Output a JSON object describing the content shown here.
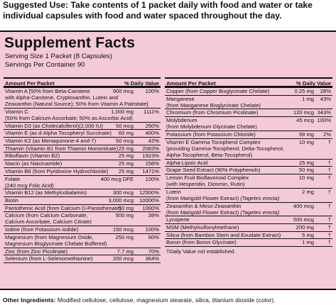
{
  "suggested_use": {
    "lead": "Suggested Use:",
    "text": " Take contents of 1 packet daily with food and water or take individual capsules with food and water spaced throughout the day."
  },
  "panel": {
    "title": "Supplement Facts",
    "serving_size": "Serving Size 1 Packet (8 Capsules)",
    "servings_per_container": "Servings Per Container 90",
    "header_amount": "Amount Per Packet",
    "header_dv": "% Daily Value"
  },
  "left_rows": [
    {
      "l1": "Vitamin A [50% from Beta-Carotene",
      "a": "900 mcg",
      "d": "100%",
      "l2": "with Alpha-Carotene, Cryptoxanthin, Lutein and",
      "l3": "Zeaxanthin (Natural Source); 50% from Vitamin A Palmitate]"
    },
    {
      "l1": "Vitamin C",
      "a": "1,000 mg",
      "d": "1111%",
      "l2": "(50% from Calcium Ascorbate; 50% as Ascorbic Acid)"
    },
    {
      "l1": "Vitamin D3 (as Cholecalciferol)(2,000 IU)",
      "a": "50 mcg",
      "d": "250%"
    },
    {
      "l1": "Vitamin E (as d-Alpha Tocopheryl Succinate)",
      "a": "60 mg",
      "d": "400%"
    },
    {
      "l1": "Vitamin K2 (as Menaquinone-4 and-7)",
      "a": "50 mcg",
      "d": "42%"
    },
    {
      "l1": "Thiamin (Vitamin B1 from Thiamin Mononitrate)",
      "a": "25 mg",
      "d": "2083%"
    },
    {
      "l1": "Riboflavin (Vitamin B2)",
      "a": "25 mg",
      "d": "1923%"
    },
    {
      "l1": "Niacin (as Niacinamide)",
      "a": "25 mg",
      "d": "156%"
    },
    {
      "l1": "Vitamin B6 (from Pyridoxine Hydrochloride)",
      "a": "25 mg",
      "d": "1471%"
    },
    {
      "l1": "Folate",
      "a": "400 mcg DFE",
      "d": "100%",
      "l2": "(240 mcg Folic Acid)"
    },
    {
      "l1": "Vitamin B12 (as Methylcobalamin)",
      "a": "300 mcg",
      "d": "12500%"
    },
    {
      "l1": "Biotin",
      "a": "3,000 mcg",
      "d": "10000%"
    },
    {
      "l1": "Pantothenic Acid (from Calcium D-Pantothenate)",
      "a": "50 mg",
      "d": "1000%"
    },
    {
      "l1": "Calcium (from Calcium Carbonate,",
      "a": "500 mg",
      "d": "38%",
      "l2": "Calcium Ascorbate, Calcium Citrate)"
    },
    {
      "l1": "Iodine (from Potassium Iodide)",
      "a": "150 mcg",
      "d": "100%"
    },
    {
      "l1": "Magnesium (from Magnesium Oxide,",
      "a": "250 mg",
      "d": "60%",
      "l2": "Magnesium Bisglycinate Chelate Buffered)"
    },
    {
      "l1": "Zinc (from Zinc Picolinate)",
      "a": "7.7 mg",
      "d": "70%"
    },
    {
      "l1": "Selenium (from L-Selenomethionine)",
      "a": "200 mcg",
      "d": "364%"
    }
  ],
  "right_rows": [
    {
      "l1": "Copper (from Copper Bisglycinate Chelate)",
      "a": "0.25 mg",
      "d": "28%"
    },
    {
      "l1": "Manganese",
      "a": "1 mg",
      "d": "43%",
      "l2": "(from Manganese Bisglycinate Chelate)"
    },
    {
      "l1": "Chromium (from Chromium Picolinate)",
      "a": "120 mcg",
      "d": "343%"
    },
    {
      "l1": "Molybdenum",
      "a": "45 mcg",
      "d": "100%",
      "l2": "(from Molybdenum Glycinate Chelate)"
    },
    {
      "l1": "Potassium (from Potassium Chloride)",
      "a": "99 mg",
      "d": "2%"
    },
    {
      "l1": "Vitamin E Gamma Tocopherol Complex",
      "a": "10 mg",
      "d": "†",
      "l2": "(providing Gamma-Tocopherol, Delta-Tocopherol,",
      "l3": "Alpha-Tocopherol, Beta-Tocopherol)"
    },
    {
      "l1": "Alpha-Lipoic Acid",
      "a": "25 mg",
      "d": "†"
    },
    {
      "l1": "Grape Seed Extract (90% Polyphenols)",
      "a": "50 mg",
      "d": "†"
    },
    {
      "l1": "Lemon Fruit Bioflavonoid Complex",
      "a": "10 mg",
      "d": "†",
      "l2": "(with Hesperidin, Diosmin, Rutin)"
    },
    {
      "l1": "Lutein",
      "a": "2 mg",
      "d": "†",
      "l2": "(from Marigold Flower Extract)",
      "l2i": "(Tagetes erecta)"
    },
    {
      "l1": "Zeaxanthin & Meso-Zeaxanthin",
      "a": "400 mcg",
      "d": "†",
      "l2": "(from Marigold Flower Extract)",
      "l2i": "(Tagetes erecta)"
    },
    {
      "l1": "Lycopene",
      "a": "500 mcg",
      "d": "†"
    },
    {
      "l1": "MSM (Methylsulfonylmethane)",
      "a": "200 mg",
      "d": "†"
    },
    {
      "l1": "Silica (from Bamboo Stem and Exudate Extract)",
      "a": "5 mg",
      "d": "†"
    },
    {
      "l1": "Boron (from Boron Glycinate)",
      "a": "1 mg",
      "d": "†"
    }
  ],
  "footnote": "†Daily Value not established.",
  "other_ingredients": {
    "lead": "Other Ingredients:",
    "text": " Modified cellulose, cellulose, magnesium stearate, silica, titanium dioxide (color)."
  }
}
